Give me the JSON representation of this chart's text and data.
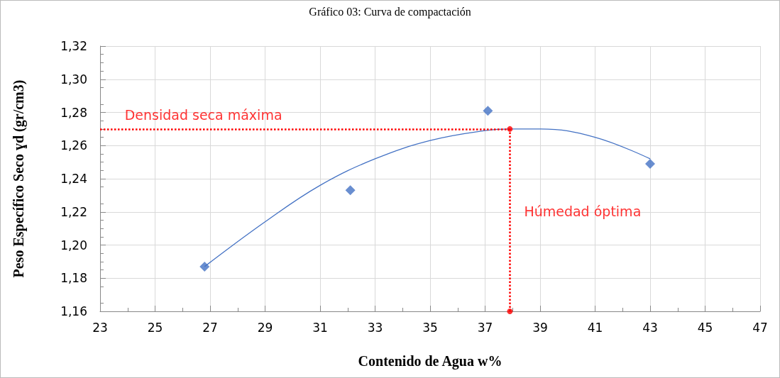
{
  "chart_data": {
    "type": "scatter",
    "title": "Gráfico 03: Curva de compactación",
    "xlabel": "Contenido de Agua w%",
    "ylabel": "Peso Específico Seco ɣd (gr/cm3)",
    "series": [
      {
        "color": "#4472c4",
        "marker": "diamond",
        "x": [
          26.8,
          32.1,
          37.1,
          43.0
        ],
        "values": [
          1.187,
          1.233,
          1.281,
          1.249
        ]
      },
      {
        "type": "line",
        "color": "#4472c4",
        "marker": "none",
        "x": [
          26.8,
          29,
          31,
          33,
          35,
          37,
          38,
          39,
          41,
          43
        ],
        "values": [
          1.187,
          1.214,
          1.236,
          1.252,
          1.263,
          1.269,
          1.27,
          1.27,
          1.265,
          1.252
        ]
      },
      {
        "type": "scatter",
        "color": "#ff0000",
        "marker": "circle",
        "x": [
          37.9,
          37.9
        ],
        "values": [
          1.27,
          1.16
        ]
      }
    ],
    "xlim": [
      23,
      47
    ],
    "xticks": [
      23,
      25,
      27,
      29,
      31,
      33,
      35,
      37,
      39,
      41,
      43,
      45,
      47
    ],
    "ylim": [
      1.16,
      1.32
    ],
    "yticks": [
      {
        "value": 1.16,
        "label": "1,16"
      },
      {
        "value": 1.18,
        "label": "1,18"
      },
      {
        "value": 1.2,
        "label": "1,20"
      },
      {
        "value": 1.22,
        "label": "1,22"
      },
      {
        "value": 1.24,
        "label": "1,24"
      },
      {
        "value": 1.26,
        "label": "1,26"
      },
      {
        "value": 1.28,
        "label": "1,28"
      },
      {
        "value": 1.3,
        "label": "1,30"
      },
      {
        "value": 1.32,
        "label": "1,32"
      }
    ],
    "grid": true,
    "ref_lines": [
      {
        "axis": "y",
        "value": 1.27,
        "label": "Densidad seca máxima",
        "color": "#ff0000",
        "line_style": "dotted"
      },
      {
        "axis": "x",
        "value": 37.9,
        "label": "Húmedad óptima",
        "color": "#ff0000",
        "line_style": "dotted"
      }
    ]
  }
}
